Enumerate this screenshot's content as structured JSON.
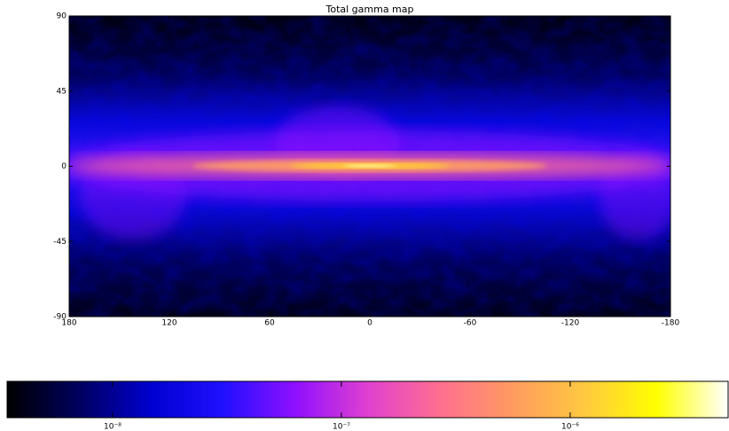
{
  "chart_data": {
    "type": "heatmap",
    "title": "Total gamma map",
    "xlim": [
      180,
      -180
    ],
    "xticks": [
      180,
      120,
      60,
      0,
      -60,
      -120,
      -180
    ],
    "ylim": [
      -90,
      90
    ],
    "yticks": [
      -90,
      -45,
      0,
      45,
      90
    ],
    "colorbar": {
      "scale": "log",
      "lim": [
        3.46e-09,
        4.9e-06
      ],
      "ticks": [
        {
          "value": 1e-08,
          "label": "10⁻⁸"
        },
        {
          "value": 1e-07,
          "label": "10⁻⁷"
        },
        {
          "value": 1e-06,
          "label": "10⁻⁶"
        }
      ],
      "colors": [
        "#000000",
        "#000060",
        "#0000d0",
        "#2010ff",
        "#9010ff",
        "#e040d0",
        "#ff6f90",
        "#ff9a60",
        "#ffc840",
        "#ffff00",
        "#ffffff"
      ]
    }
  }
}
